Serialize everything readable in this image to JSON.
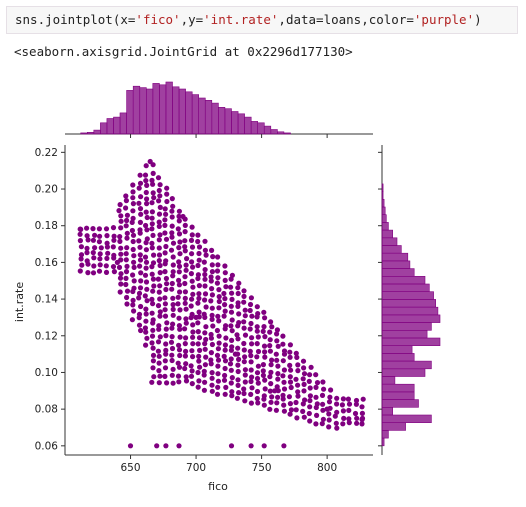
{
  "cell": {
    "code_prefix": "sns.jointplot(x=",
    "arg_x": "'fico'",
    "sep1": ",y=",
    "arg_y": "'int.rate'",
    "sep2": ",data=loans,color=",
    "arg_color": "'purple'",
    "code_suffix": ")"
  },
  "output": {
    "text": "<seaborn.axisgrid.JointGrid at 0x2296d177130>"
  },
  "chart_data": {
    "type": "scatter",
    "subtype": "jointplot",
    "xlabel": "fico",
    "ylabel": "int.rate",
    "xlim": [
      600,
      835
    ],
    "ylim": [
      0.055,
      0.224
    ],
    "xticks": [
      650,
      700,
      750,
      800
    ],
    "yticks": [
      0.06,
      0.08,
      0.1,
      0.12,
      0.14,
      0.16,
      0.18,
      0.2,
      0.22
    ],
    "ytick_labels": [
      "0.06",
      "0.08",
      "0.10",
      "0.12",
      "0.14",
      "0.16",
      "0.18",
      "0.20",
      "0.22"
    ],
    "color": "#800080",
    "scatter_trend": {
      "description_points": [
        {
          "fico": 612,
          "int_rate": 0.178
        },
        {
          "fico": 640,
          "int_rate": 0.16
        },
        {
          "fico": 665,
          "int_rate": 0.215
        },
        {
          "fico": 690,
          "int_rate": 0.185
        },
        {
          "fico": 700,
          "int_rate": 0.13
        },
        {
          "fico": 730,
          "int_rate": 0.11
        },
        {
          "fico": 760,
          "int_rate": 0.09
        },
        {
          "fico": 800,
          "int_rate": 0.08
        },
        {
          "fico": 827,
          "int_rate": 0.075
        },
        {
          "fico": 650,
          "int_rate": 0.06
        },
        {
          "fico": 670,
          "int_rate": 0.06
        },
        {
          "fico": 677,
          "int_rate": 0.06
        },
        {
          "fico": 687,
          "int_rate": 0.06
        },
        {
          "fico": 727,
          "int_rate": 0.06
        },
        {
          "fico": 742,
          "int_rate": 0.06
        },
        {
          "fico": 752,
          "int_rate": 0.06
        },
        {
          "fico": 767,
          "int_rate": 0.06
        }
      ]
    },
    "marginal_x": {
      "bin_start": 612,
      "bin_width": 5,
      "counts": [
        4,
        6,
        14,
        40,
        55,
        60,
        75,
        155,
        170,
        165,
        160,
        180,
        175,
        185,
        168,
        160,
        150,
        140,
        128,
        120,
        110,
        95,
        90,
        80,
        72,
        60,
        45,
        40,
        28,
        16,
        8,
        4
      ]
    },
    "marginal_y": {
      "bin_start": 0.06,
      "bin_width": 0.0042,
      "counts": [
        2,
        6,
        22,
        46,
        10,
        34,
        30,
        30,
        12,
        40,
        46,
        30,
        28,
        54,
        42,
        46,
        54,
        52,
        50,
        48,
        44,
        40,
        30,
        26,
        24,
        18,
        14,
        10,
        6,
        4,
        3,
        2,
        1,
        1
      ]
    }
  }
}
